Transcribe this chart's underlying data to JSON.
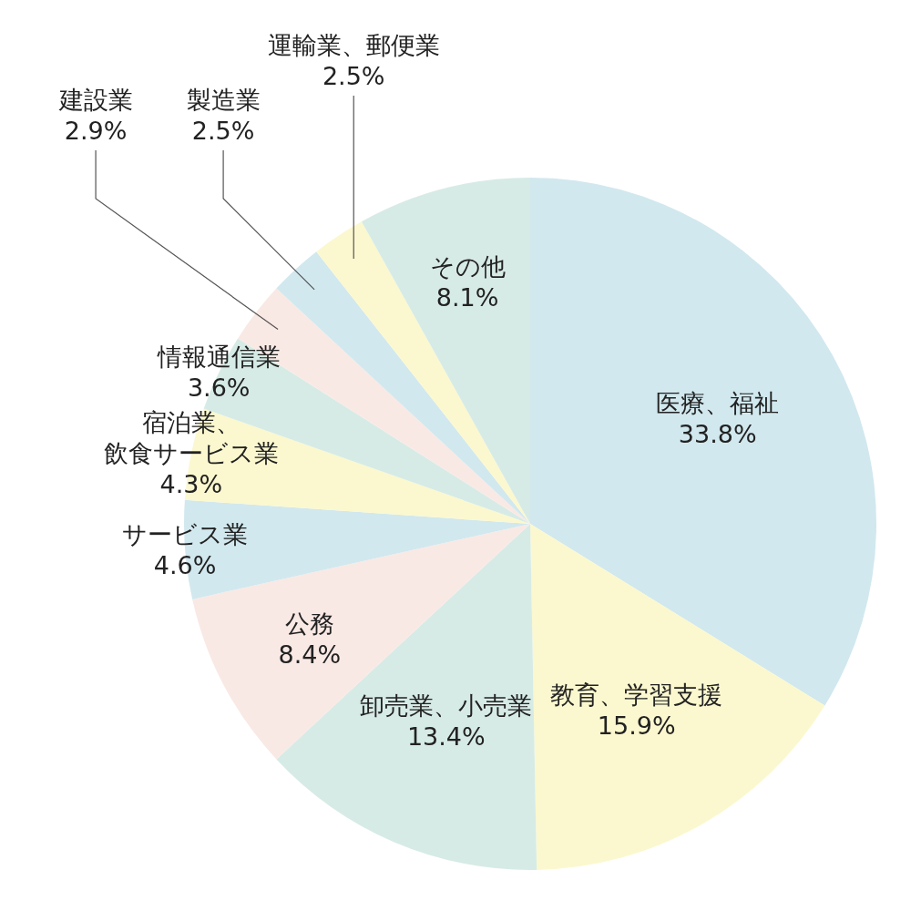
{
  "chart_data": {
    "type": "pie",
    "categories": [
      "医療、福祉",
      "教育、学習支援",
      "卸売業、小売業",
      "公務",
      "サービス業",
      "宿泊業、飲食サービス業",
      "情報通信業",
      "建設業",
      "製造業",
      "運輸業、郵便業",
      "その他"
    ],
    "values": [
      33.8,
      15.9,
      13.4,
      8.4,
      4.6,
      4.3,
      3.6,
      2.9,
      2.5,
      2.5,
      8.1
    ],
    "value_labels": [
      "33.8%",
      "15.9%",
      "13.4%",
      "8.4%",
      "4.6%",
      "4.3%",
      "3.6%",
      "2.9%",
      "2.5%",
      "2.5%",
      "8.1%"
    ],
    "colors": [
      "#d1e8ee",
      "#fbf8cf",
      "#d7ebe6",
      "#f9e9e4",
      "#d1e8ee",
      "#fbf8cf",
      "#d7ebe6",
      "#f9e9e4",
      "#d1e8ee",
      "#fbf8cf",
      "#d7ebe6"
    ],
    "legend": false
  }
}
